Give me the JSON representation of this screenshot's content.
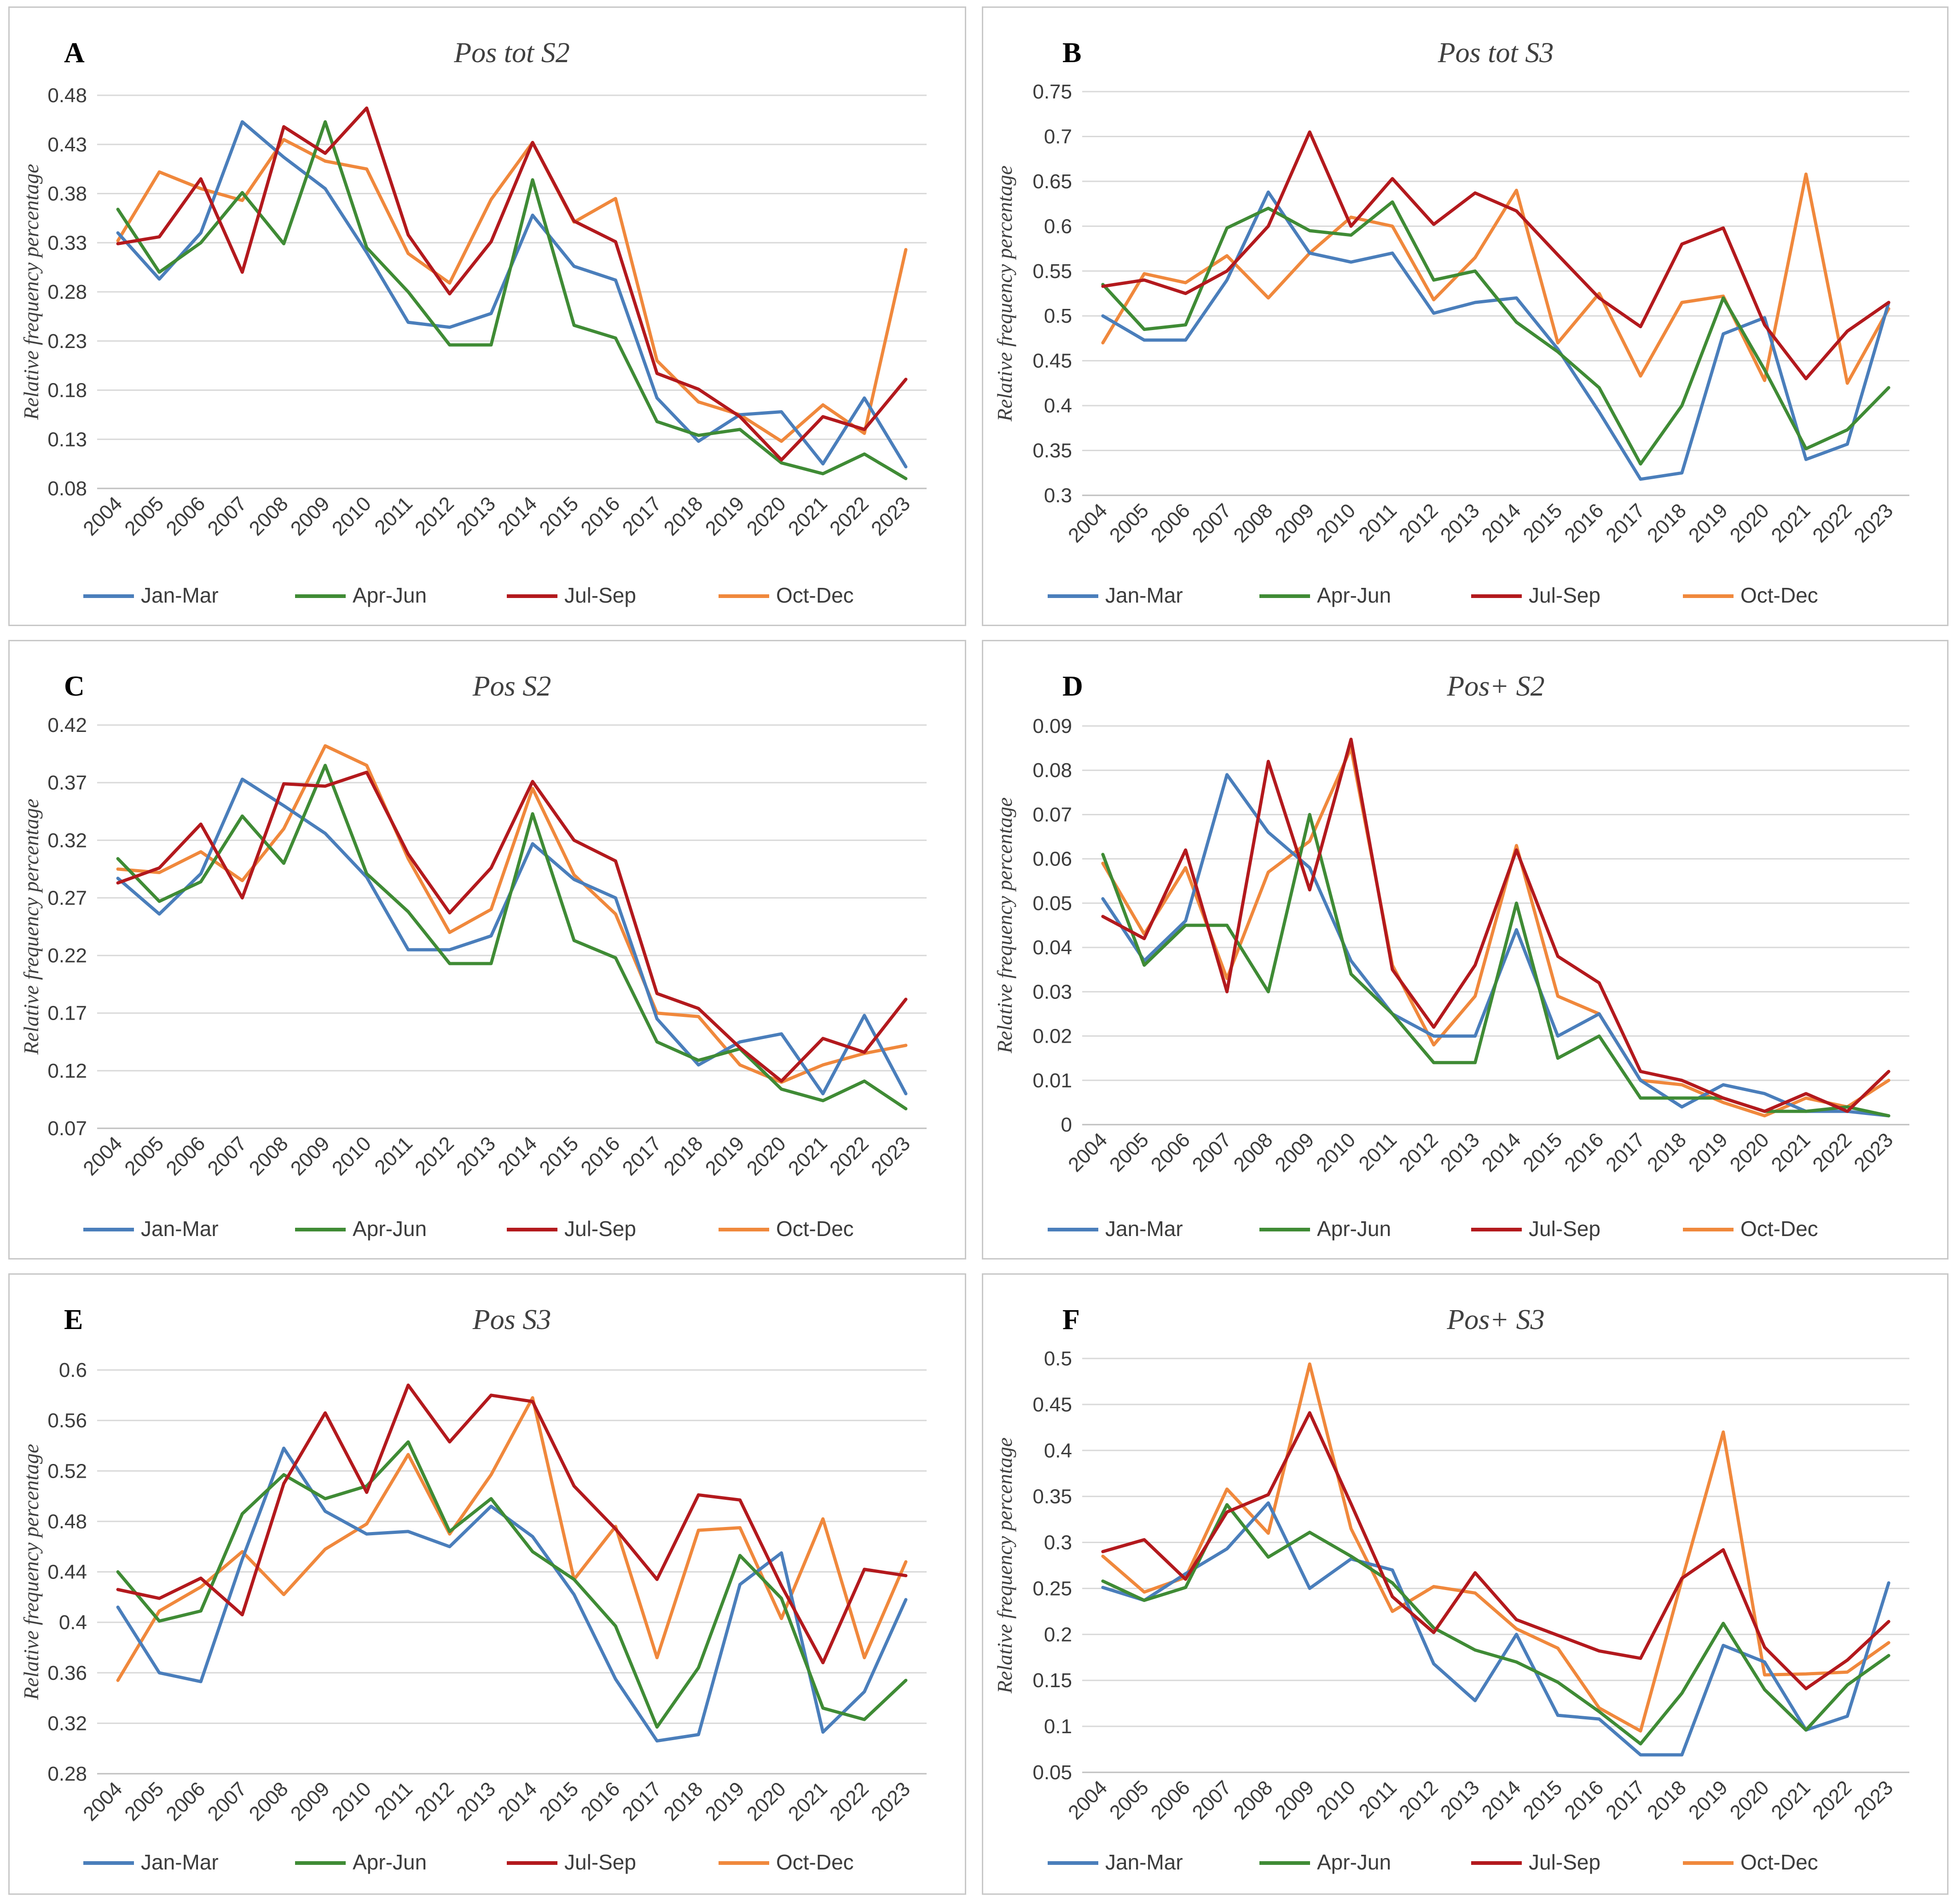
{
  "series_colors": {
    "Jan-Mar": "#4a7ebb",
    "Apr-Jun": "#3f8b35",
    "Jul-Sep": "#b3191d",
    "Oct-Dec": "#f0883c"
  },
  "chart_data": [
    {
      "panel": "A",
      "type": "line",
      "title": "Pos tot S2",
      "ylabel": "Relative frequency percentage",
      "xlabel": "",
      "categories": [
        "2004",
        "2005",
        "2006",
        "2007",
        "2008",
        "2009",
        "2010",
        "2011",
        "2012",
        "2013",
        "2014",
        "2015",
        "2016",
        "2017",
        "2018",
        "2019",
        "2020",
        "2021",
        "2022",
        "2023"
      ],
      "yticks": [
        "0.08",
        "0.13",
        "0.18",
        "0.23",
        "0.28",
        "0.33",
        "0.38",
        "0.43",
        "0.48"
      ],
      "ylim": [
        0.08,
        0.48
      ],
      "series": [
        {
          "name": "Jan-Mar",
          "values": [
            0.34,
            0.293,
            0.34,
            0.453,
            0.417,
            0.385,
            0.32,
            0.249,
            0.244,
            0.258,
            0.358,
            0.306,
            0.292,
            0.172,
            0.128,
            0.155,
            0.158,
            0.105,
            0.172,
            0.102
          ]
        },
        {
          "name": "Apr-Jun",
          "values": [
            0.364,
            0.3,
            0.33,
            0.381,
            0.329,
            0.453,
            0.325,
            0.28,
            0.226,
            0.226,
            0.394,
            0.246,
            0.233,
            0.148,
            0.134,
            0.14,
            0.106,
            0.095,
            0.115,
            0.09
          ]
        },
        {
          "name": "Jul-Sep",
          "values": [
            0.329,
            0.336,
            0.395,
            0.3,
            0.448,
            0.421,
            0.467,
            0.338,
            0.278,
            0.331,
            0.432,
            0.352,
            0.331,
            0.197,
            0.181,
            0.153,
            0.109,
            0.153,
            0.14,
            0.191
          ]
        },
        {
          "name": "Oct-Dec",
          "values": [
            0.332,
            0.402,
            0.385,
            0.373,
            0.435,
            0.413,
            0.405,
            0.319,
            0.289,
            0.374,
            0.432,
            0.351,
            0.375,
            0.21,
            0.168,
            0.155,
            0.128,
            0.165,
            0.136,
            0.323
          ]
        }
      ]
    },
    {
      "panel": "B",
      "type": "line",
      "title": "Pos tot S3",
      "ylabel": "Relative frequency percentage",
      "xlabel": "",
      "categories": [
        "2004",
        "2005",
        "2006",
        "2007",
        "2008",
        "2009",
        "2010",
        "2011",
        "2012",
        "2013",
        "2014",
        "2015",
        "2016",
        "2017",
        "2018",
        "2019",
        "2020",
        "2021",
        "2022",
        "2023"
      ],
      "yticks": [
        "0.3",
        "0.35",
        "0.4",
        "0.45",
        "0.5",
        "0.55",
        "0.6",
        "0.65",
        "0.7",
        "0.75"
      ],
      "ylim": [
        0.3,
        0.75
      ],
      "series": [
        {
          "name": "Jan-Mar",
          "values": [
            0.5,
            0.473,
            0.473,
            0.54,
            0.638,
            0.57,
            0.56,
            0.57,
            0.503,
            0.515,
            0.52,
            0.463,
            0.393,
            0.318,
            0.325,
            0.48,
            0.498,
            0.34,
            0.357,
            0.515
          ]
        },
        {
          "name": "Apr-Jun",
          "values": [
            0.535,
            0.485,
            0.49,
            0.598,
            0.62,
            0.595,
            0.59,
            0.627,
            0.54,
            0.55,
            0.493,
            0.46,
            0.42,
            0.335,
            0.4,
            0.52,
            0.44,
            0.352,
            0.373,
            0.42
          ]
        },
        {
          "name": "Jul-Sep",
          "values": [
            0.533,
            0.54,
            0.525,
            0.55,
            0.6,
            0.705,
            0.6,
            0.653,
            0.602,
            0.637,
            0.617,
            0.568,
            0.52,
            0.488,
            0.58,
            0.598,
            0.49,
            0.43,
            0.483,
            0.515
          ]
        },
        {
          "name": "Oct-Dec",
          "values": [
            0.47,
            0.547,
            0.537,
            0.567,
            0.52,
            0.57,
            0.61,
            0.6,
            0.518,
            0.565,
            0.64,
            0.47,
            0.525,
            0.433,
            0.515,
            0.522,
            0.428,
            0.658,
            0.425,
            0.508
          ]
        }
      ]
    },
    {
      "panel": "C",
      "type": "line",
      "title": "Pos S2",
      "ylabel": "Relative frequency percentage",
      "xlabel": "",
      "categories": [
        "2004",
        "2005",
        "2006",
        "2007",
        "2008",
        "2009",
        "2010",
        "2011",
        "2012",
        "2013",
        "2014",
        "2015",
        "2016",
        "2017",
        "2018",
        "2019",
        "2020",
        "2021",
        "2022",
        "2023"
      ],
      "yticks": [
        "0.07",
        "0.12",
        "0.17",
        "0.22",
        "0.27",
        "0.32",
        "0.37",
        "0.42"
      ],
      "ylim": [
        0.07,
        0.42
      ],
      "series": [
        {
          "name": "Jan-Mar",
          "values": [
            0.287,
            0.256,
            0.291,
            0.373,
            0.35,
            0.326,
            0.288,
            0.225,
            0.225,
            0.237,
            0.317,
            0.286,
            0.27,
            0.165,
            0.125,
            0.145,
            0.152,
            0.1,
            0.168,
            0.1
          ]
        },
        {
          "name": "Apr-Jun",
          "values": [
            0.304,
            0.267,
            0.284,
            0.341,
            0.3,
            0.385,
            0.291,
            0.258,
            0.213,
            0.213,
            0.343,
            0.233,
            0.218,
            0.145,
            0.129,
            0.139,
            0.104,
            0.094,
            0.111,
            0.087
          ]
        },
        {
          "name": "Jul-Sep",
          "values": [
            0.283,
            0.296,
            0.334,
            0.27,
            0.369,
            0.367,
            0.379,
            0.308,
            0.257,
            0.296,
            0.371,
            0.32,
            0.302,
            0.187,
            0.174,
            0.14,
            0.111,
            0.148,
            0.136,
            0.182
          ]
        },
        {
          "name": "Oct-Dec",
          "values": [
            0.295,
            0.292,
            0.31,
            0.285,
            0.33,
            0.402,
            0.385,
            0.304,
            0.24,
            0.26,
            0.365,
            0.29,
            0.256,
            0.17,
            0.167,
            0.125,
            0.11,
            0.125,
            0.135,
            0.142
          ]
        }
      ]
    },
    {
      "panel": "D",
      "type": "line",
      "title": "Pos+ S2",
      "ylabel": "Relative frequency percentage",
      "xlabel": "",
      "categories": [
        "2004",
        "2005",
        "2006",
        "2007",
        "2008",
        "2009",
        "2010",
        "2011",
        "2012",
        "2013",
        "2014",
        "2015",
        "2016",
        "2017",
        "2018",
        "2019",
        "2020",
        "2021",
        "2022",
        "2023"
      ],
      "yticks": [
        "0",
        "0.01",
        "0.02",
        "0.03",
        "0.04",
        "0.05",
        "0.06",
        "0.07",
        "0.08",
        "0.09"
      ],
      "ylim": [
        0,
        0.09
      ],
      "series": [
        {
          "name": "Jan-Mar",
          "values": [
            0.051,
            0.037,
            0.046,
            0.079,
            0.066,
            0.058,
            0.037,
            0.025,
            0.02,
            0.02,
            0.044,
            0.02,
            0.025,
            0.01,
            0.004,
            0.009,
            0.007,
            0.003,
            0.003,
            0.002
          ]
        },
        {
          "name": "Apr-Jun",
          "values": [
            0.061,
            0.036,
            0.045,
            0.045,
            0.03,
            0.07,
            0.034,
            0.025,
            0.014,
            0.014,
            0.05,
            0.015,
            0.02,
            0.006,
            0.006,
            0.006,
            0.003,
            0.003,
            0.004,
            0.002
          ]
        },
        {
          "name": "Jul-Sep",
          "values": [
            0.047,
            0.042,
            0.062,
            0.03,
            0.082,
            0.053,
            0.087,
            0.035,
            0.022,
            0.036,
            0.062,
            0.038,
            0.032,
            0.012,
            0.01,
            0.006,
            0.003,
            0.007,
            0.003,
            0.012
          ]
        },
        {
          "name": "Oct-Dec",
          "values": [
            0.059,
            0.043,
            0.058,
            0.033,
            0.057,
            0.064,
            0.085,
            0.036,
            0.018,
            0.029,
            0.063,
            0.029,
            0.025,
            0.01,
            0.009,
            0.005,
            0.002,
            0.006,
            0.004,
            0.01
          ]
        }
      ]
    },
    {
      "panel": "E",
      "type": "line",
      "title": "Pos S3",
      "ylabel": "Relative frequency percentage",
      "xlabel": "",
      "categories": [
        "2004",
        "2005",
        "2006",
        "2007",
        "2008",
        "2009",
        "2010",
        "2011",
        "2012",
        "2013",
        "2014",
        "2015",
        "2016",
        "2017",
        "2018",
        "2019",
        "2020",
        "2021",
        "2022",
        "2023"
      ],
      "yticks": [
        "0.28",
        "0.32",
        "0.36",
        "0.4",
        "0.44",
        "0.48",
        "0.52",
        "0.56",
        "0.6"
      ],
      "ylim": [
        0.28,
        0.6
      ],
      "series": [
        {
          "name": "Jan-Mar",
          "values": [
            0.412,
            0.36,
            0.353,
            0.45,
            0.538,
            0.488,
            0.47,
            0.472,
            0.46,
            0.492,
            0.468,
            0.422,
            0.355,
            0.306,
            0.311,
            0.43,
            0.455,
            0.313,
            0.345,
            0.418
          ]
        },
        {
          "name": "Apr-Jun",
          "values": [
            0.44,
            0.401,
            0.409,
            0.486,
            0.517,
            0.498,
            0.508,
            0.543,
            0.472,
            0.498,
            0.456,
            0.434,
            0.397,
            0.317,
            0.364,
            0.453,
            0.419,
            0.332,
            0.323,
            0.354
          ]
        },
        {
          "name": "Jul-Sep",
          "values": [
            0.426,
            0.419,
            0.435,
            0.406,
            0.51,
            0.566,
            0.503,
            0.588,
            0.543,
            0.58,
            0.575,
            0.508,
            0.474,
            0.434,
            0.501,
            0.497,
            0.429,
            0.368,
            0.442,
            0.437
          ]
        },
        {
          "name": "Oct-Dec",
          "values": [
            0.354,
            0.409,
            0.428,
            0.456,
            0.422,
            0.458,
            0.478,
            0.533,
            0.47,
            0.517,
            0.578,
            0.434,
            0.476,
            0.372,
            0.473,
            0.475,
            0.403,
            0.482,
            0.372,
            0.448
          ]
        }
      ]
    },
    {
      "panel": "F",
      "type": "line",
      "title": "Pos+ S3",
      "ylabel": "Relative frequency percentage",
      "xlabel": "",
      "categories": [
        "2004",
        "2005",
        "2006",
        "2007",
        "2008",
        "2009",
        "2010",
        "2011",
        "2012",
        "2013",
        "2014",
        "2015",
        "2016",
        "2017",
        "2018",
        "2019",
        "2020",
        "2021",
        "2022",
        "2023"
      ],
      "yticks": [
        "0.05",
        "0.1",
        "0.15",
        "0.2",
        "0.25",
        "0.3",
        "0.35",
        "0.4",
        "0.45",
        "0.5"
      ],
      "ylim": [
        0.05,
        0.5
      ],
      "series": [
        {
          "name": "Jan-Mar",
          "values": [
            0.251,
            0.237,
            0.266,
            0.293,
            0.343,
            0.25,
            0.282,
            0.27,
            0.168,
            0.128,
            0.2,
            0.112,
            0.108,
            0.069,
            0.069,
            0.188,
            0.17,
            0.096,
            0.111,
            0.256
          ]
        },
        {
          "name": "Apr-Jun",
          "values": [
            0.258,
            0.237,
            0.251,
            0.341,
            0.284,
            0.311,
            0.285,
            0.256,
            0.207,
            0.183,
            0.17,
            0.148,
            0.116,
            0.081,
            0.136,
            0.212,
            0.14,
            0.096,
            0.145,
            0.177
          ]
        },
        {
          "name": "Jul-Sep",
          "values": [
            0.29,
            0.303,
            0.26,
            0.333,
            0.352,
            0.441,
            0.342,
            0.241,
            0.202,
            0.267,
            0.216,
            0.199,
            0.182,
            0.174,
            0.261,
            0.292,
            0.186,
            0.141,
            0.172,
            0.214
          ]
        },
        {
          "name": "Oct-Dec",
          "values": [
            0.285,
            0.246,
            0.262,
            0.358,
            0.31,
            0.494,
            0.315,
            0.225,
            0.252,
            0.245,
            0.206,
            0.185,
            0.12,
            0.095,
            0.259,
            0.42,
            0.156,
            0.157,
            0.159,
            0.191
          ]
        }
      ]
    }
  ]
}
